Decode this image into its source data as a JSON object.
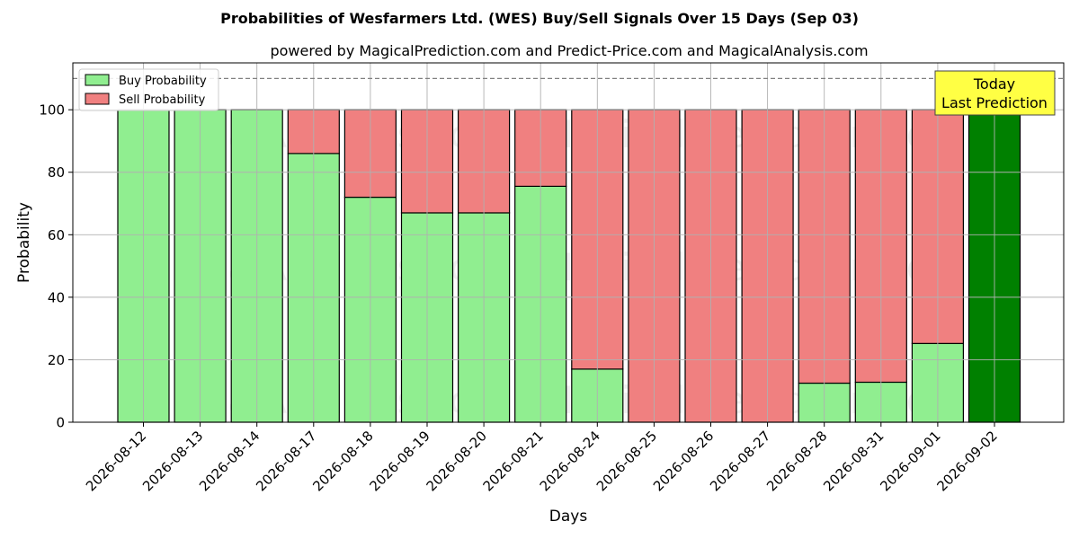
{
  "chart_data": {
    "type": "bar",
    "stacked": true,
    "title": "Probabilities of Wesfarmers Ltd. (WES) Buy/Sell Signals Over 15 Days (Sep 03)",
    "subtitle": "powered by MagicalPrediction.com and Predict-Price.com and MagicalAnalysis.com",
    "xlabel": "Days",
    "ylabel": "Probability",
    "ylim": [
      0,
      115
    ],
    "yticks": [
      0,
      20,
      40,
      60,
      80,
      100
    ],
    "reference_line": 110,
    "grid": true,
    "legend_position": "top-left",
    "categories": [
      "2026-08-12",
      "2026-08-13",
      "2026-08-14",
      "2026-08-17",
      "2026-08-18",
      "2026-08-19",
      "2026-08-20",
      "2026-08-21",
      "2026-08-24",
      "2026-08-25",
      "2026-08-26",
      "2026-08-27",
      "2026-08-28",
      "2026-08-31",
      "2026-09-01",
      "2026-09-02"
    ],
    "series": [
      {
        "name": "Buy Probability",
        "color": "#90ee90",
        "values": [
          100,
          100,
          100,
          86,
          72,
          67,
          67,
          75.5,
          17,
          0,
          0,
          0,
          12.5,
          12.8,
          25.2,
          100
        ]
      },
      {
        "name": "Sell Probability",
        "color": "#f08080",
        "values": [
          0,
          0,
          0,
          14,
          28,
          33,
          33,
          24.5,
          83,
          100,
          100,
          100,
          87.5,
          87.2,
          74.8,
          0
        ]
      }
    ],
    "highlight": {
      "index": 15,
      "color": "#008000",
      "label_line1": "Today",
      "label_line2": "Last Prediction",
      "label_bg": "#ffff44"
    },
    "watermarks": [
      "MagicalAnalysis.com",
      "MagicalPrediction.com",
      "MagicalAnalysis.com",
      "MagicalPrediction.com",
      "MagicalAnalysis.com",
      "MagicalPrediction.com"
    ]
  }
}
